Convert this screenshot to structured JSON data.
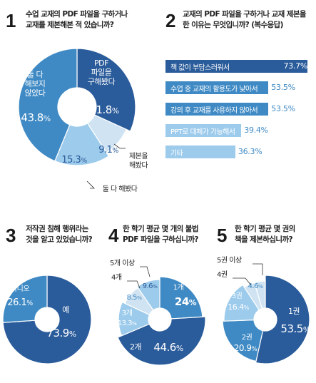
{
  "colors": {
    "dark": "#2a5b9a",
    "mid": "#3f8ac4",
    "light": "#9dcbec",
    "pale": "#cfe3f2"
  },
  "panels": {
    "q1": {
      "num": "1",
      "lines": [
        "수업 교재의 PDF 파일을 구하거나",
        "교재를 제본해본 적 있습니까?"
      ]
    },
    "q2": {
      "num": "2",
      "lines": [
        "교재의 PDF 파일을 구하거나 교재 제본을",
        "한 이유는 무엇입니까? (복수응답)"
      ]
    },
    "q3": {
      "num": "3",
      "lines": [
        "저작권 침해 행위라는",
        "것을 알고 있었습니까?"
      ]
    },
    "q4": {
      "num": "4",
      "lines": [
        "한 학기 평균 몇 개의 불법",
        "PDF 파일을 구하십니까?"
      ]
    },
    "q5": {
      "num": "5",
      "lines": [
        "한 학기 평균 몇 권의",
        "책을 제본하십니까?"
      ]
    }
  },
  "chart_data": [
    {
      "id": "q1",
      "type": "pie",
      "title": "수업 교재의 PDF 파일을 구하거나 교재를 제본해본 적 있습니까?",
      "slices": [
        {
          "label": "PDF 파일을 구해봤다",
          "value": 31.8,
          "value_text": "31.8%"
        },
        {
          "label": "제본을 해봤다",
          "value": 9.1,
          "value_text": "9.1%"
        },
        {
          "label": "둘 다 해봤다",
          "value": 15.3,
          "value_text": "15.3%"
        },
        {
          "label": "둘 다 해보지 않았다",
          "value": 43.8,
          "value_text": "43.8%"
        }
      ]
    },
    {
      "id": "q2",
      "type": "bar",
      "orientation": "horizontal",
      "title": "교재의 PDF 파일을 구하거나 교재 제본을 한 이유는 무엇입니까? (복수응답)",
      "categories": [
        "책 값이 부담스러워서",
        "수업 중 교재의 활용도가 낮아서",
        "강의 후 교재를 사용하지 않아서",
        "PPT로 대체가 가능해서",
        "기타"
      ],
      "values": [
        73.7,
        53.5,
        53.5,
        39.4,
        36.3
      ],
      "value_text": [
        "73.7%",
        "53.5%",
        "53.5%",
        "39.4%",
        "36.3%"
      ]
    },
    {
      "id": "q3",
      "type": "pie",
      "title": "저작권 침해 행위라는 것을 알고 있었습니까?",
      "slices": [
        {
          "label": "예",
          "value": 73.9,
          "value_text": "73.9%"
        },
        {
          "label": "아니오",
          "value": 26.1,
          "value_text": "26.1%"
        }
      ]
    },
    {
      "id": "q4",
      "type": "pie",
      "title": "한 학기 평균 몇 개의 불법 PDF 파일을 구하십니까?",
      "slices": [
        {
          "label": "1개",
          "value": 24,
          "value_text": "24%"
        },
        {
          "label": "2개",
          "value": 44.6,
          "value_text": "44.6%"
        },
        {
          "label": "3개",
          "value": 13.3,
          "value_text": "13.3%"
        },
        {
          "label": "4개",
          "value": 8.5,
          "value_text": "8.5%"
        },
        {
          "label": "5개 이상",
          "value": 9.6,
          "value_text": "9.6%"
        }
      ]
    },
    {
      "id": "q5",
      "type": "pie",
      "title": "한 학기 평균 몇 권의 책을 제본하십니까?",
      "slices": [
        {
          "label": "1권",
          "value": 53.5,
          "value_text": "53.5%"
        },
        {
          "label": "2권",
          "value": 20.9,
          "value_text": "20.9%"
        },
        {
          "label": "3권",
          "value": 16.4,
          "value_text": "16.4%"
        },
        {
          "label": "4권",
          "value": 4.6,
          "value_text": "4.6%"
        },
        {
          "label": "5권 이상",
          "value": 4.6,
          "value_text": "4.6%"
        }
      ]
    }
  ]
}
